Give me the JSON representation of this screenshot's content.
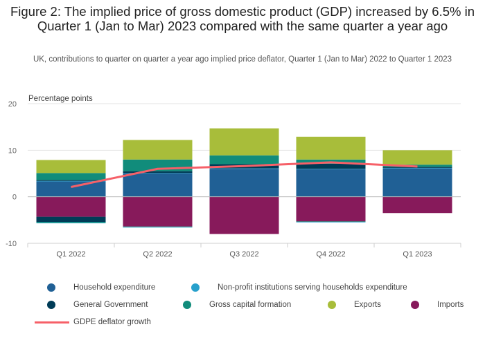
{
  "title": "Figure 2: The implied price of gross domestic product (GDP) increased by 6.5% in Quarter 1 (Jan to Mar) 2023 compared with the same quarter a year ago",
  "subtitle": "UK, contributions to quarter on quarter a year ago implied price deflator, Quarter 1 (Jan to Mar) 2022 to Quarter 1 2023",
  "chart_data": {
    "type": "bar",
    "stacked": true,
    "title": "Figure 2: The implied price of gross domestic product (GDP) increased by 6.5% in Quarter 1 (Jan to Mar) 2023 compared with the same quarter a year ago",
    "ylabel": "Percentage points",
    "ylim": [
      -10,
      20
    ],
    "yticks": [
      -10,
      0,
      10,
      20
    ],
    "grid": true,
    "legend_position": "bottom",
    "categories": [
      "Q1 2022",
      "Q2 2022",
      "Q3 2022",
      "Q4 2022",
      "Q1 2023"
    ],
    "series": [
      {
        "name": "Household expenditure",
        "color": "#206095",
        "values": [
          3.3,
          5.0,
          6.0,
          5.9,
          6.1
        ]
      },
      {
        "name": "Non-profit institutions serving households expenditure",
        "color": "#27a0cc",
        "values": [
          0.1,
          0.1,
          0.1,
          0.1,
          0.1
        ]
      },
      {
        "name": "General Government",
        "color": "#003c57",
        "values": [
          0.2,
          0.4,
          0.9,
          1.1,
          0.2
        ]
      },
      {
        "name": "Gross capital formation",
        "color": "#118c7b",
        "values": [
          1.5,
          2.5,
          1.9,
          0.9,
          0.5
        ]
      },
      {
        "name": "Exports",
        "color": "#a8bd3a",
        "values": [
          2.8,
          4.2,
          5.8,
          4.9,
          3.1
        ]
      },
      {
        "name": "Imports",
        "color": "#871a5b",
        "values": [
          -4.3,
          -6.4,
          -8.0,
          -5.3,
          -3.5
        ]
      }
    ],
    "negative_extras": [
      {
        "series": "General Government",
        "values": [
          -1.1,
          0.0,
          0.0,
          0.0,
          0.0
        ]
      },
      {
        "series": "Gross capital formation",
        "values": [
          -0.2,
          -0.1,
          0.0,
          -0.1,
          0.0
        ]
      },
      {
        "series": "Non-profit institutions serving households expenditure",
        "values": [
          -0.1,
          -0.1,
          0.0,
          -0.1,
          0.0
        ]
      }
    ],
    "line": {
      "name": "GDPE deflator growth",
      "color": "#f66068",
      "values": [
        2.1,
        6.0,
        6.6,
        7.4,
        6.5
      ]
    }
  },
  "legend": [
    {
      "label": "Household expenditure",
      "color": "#206095",
      "kind": "dot"
    },
    {
      "label": "Non-profit institutions serving households expenditure",
      "color": "#27a0cc",
      "kind": "dot"
    },
    {
      "label": "General Government",
      "color": "#003c57",
      "kind": "dot"
    },
    {
      "label": "Gross capital formation",
      "color": "#118c7b",
      "kind": "dot"
    },
    {
      "label": "Exports",
      "color": "#a8bd3a",
      "kind": "dot"
    },
    {
      "label": "Imports",
      "color": "#871a5b",
      "kind": "dot"
    },
    {
      "label": "GDPE deflator growth",
      "color": "#f66068",
      "kind": "line"
    }
  ]
}
